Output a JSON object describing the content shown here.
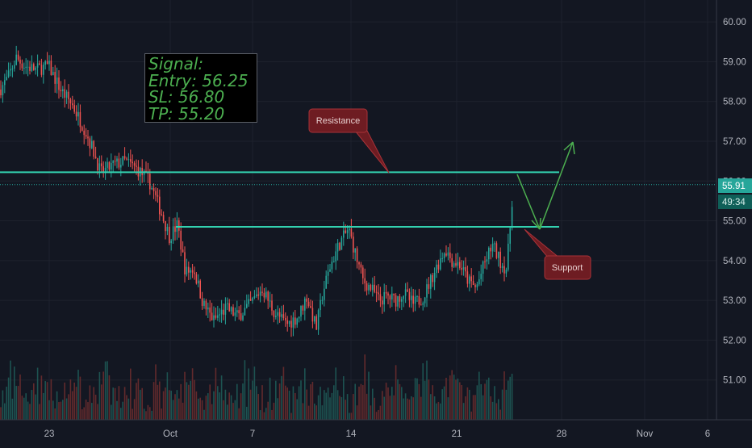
{
  "chart_data": {
    "type": "candlestick",
    "y_ticks": [
      "60.00",
      "59.00",
      "58.00",
      "57.00",
      "56.00",
      "55.00",
      "54.00",
      "53.00",
      "52.00",
      "51.00"
    ],
    "ylim": [
      50.0,
      60.55
    ],
    "x_ticks": [
      "23",
      "Oct",
      "7",
      "14",
      "21",
      "28",
      "Nov",
      "6"
    ],
    "price_badge": "55.91",
    "countdown_badge": "49:34",
    "signal": [
      "Signal:",
      "Entry: 56.25",
      "SL: 56.80",
      "TP: 55.20"
    ],
    "annotations": {
      "resistance": {
        "label": "Resistance",
        "price": 56.22
      },
      "support": {
        "label": "Support",
        "price": 54.85
      }
    },
    "colors": {
      "up": "#26a69a",
      "down": "#ef5350",
      "line": "#33d1b0",
      "arrow": "#4caf50",
      "callout": "#6e1c22"
    }
  }
}
